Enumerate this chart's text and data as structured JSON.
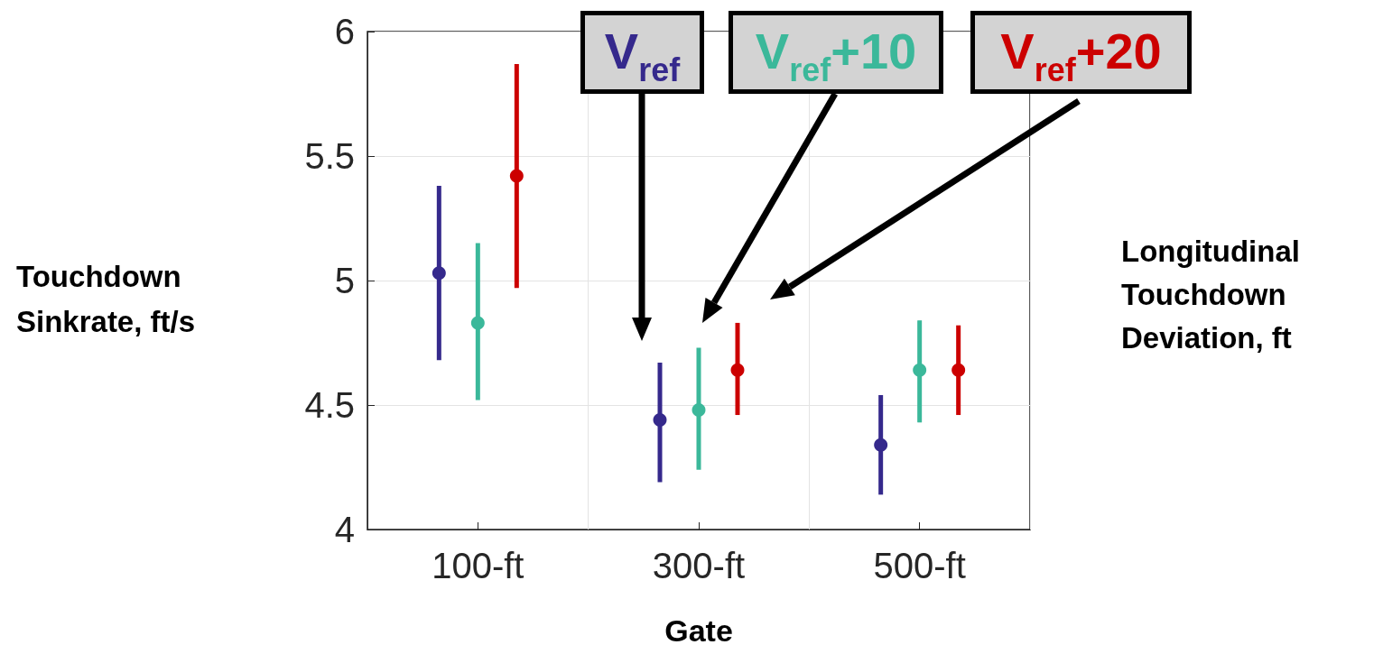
{
  "chart_data": {
    "type": "scatter",
    "xlabel": "Gate",
    "ylabel": "Touchdown Sinkrate, ft/s",
    "annotations": [
      "Longitudinal Touchdown Deviation, ft"
    ],
    "categories": [
      "100-ft",
      "300-ft",
      "500-ft"
    ],
    "series": [
      {
        "name": "V$_{ref}$",
        "color": "#35298c",
        "values": [
          5.03,
          4.44,
          4.34
        ],
        "errors": [
          [
            4.68,
            5.38
          ],
          [
            4.19,
            4.67
          ],
          [
            4.14,
            4.54
          ]
        ]
      },
      {
        "name": "V$_{ref}$+10",
        "color": "#3bb89a",
        "values": [
          4.83,
          4.48,
          4.64
        ],
        "errors": [
          [
            4.52,
            5.15
          ],
          [
            4.24,
            4.73
          ],
          [
            4.43,
            4.84
          ]
        ]
      },
      {
        "name": "V$_{ref}$+20",
        "color": "#cc0000",
        "values": [
          5.42,
          4.64,
          4.64
        ],
        "errors": [
          [
            4.97,
            5.87
          ],
          [
            4.46,
            4.83
          ],
          [
            4.46,
            4.82
          ]
        ]
      }
    ],
    "ylim": [
      4,
      6
    ],
    "yticks": [
      4,
      4.5,
      5,
      5.5,
      6
    ],
    "grid": true,
    "legend": "top",
    "marker": "circle"
  }
}
